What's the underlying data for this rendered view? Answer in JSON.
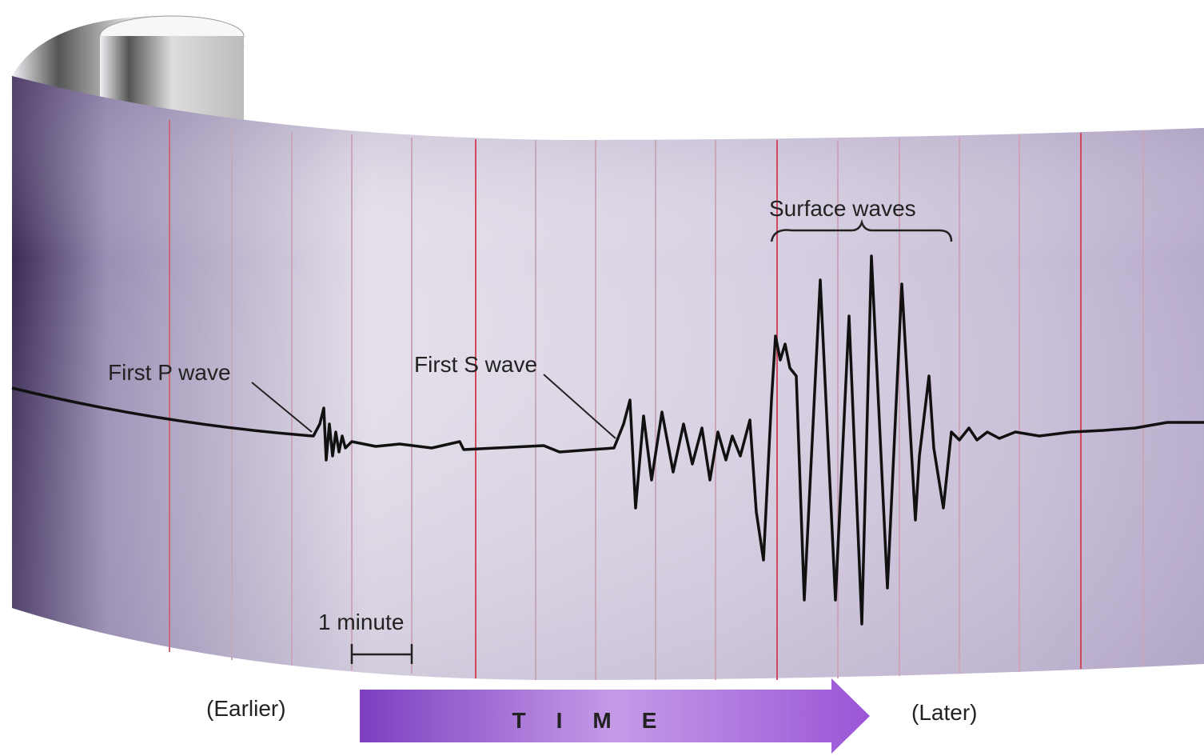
{
  "labels": {
    "p_wave": "First P wave",
    "s_wave": "First S wave",
    "surface_waves": "Surface waves",
    "scale": "1 minute",
    "earlier": "(Earlier)",
    "later": "(Later)",
    "time": "TIME"
  }
}
